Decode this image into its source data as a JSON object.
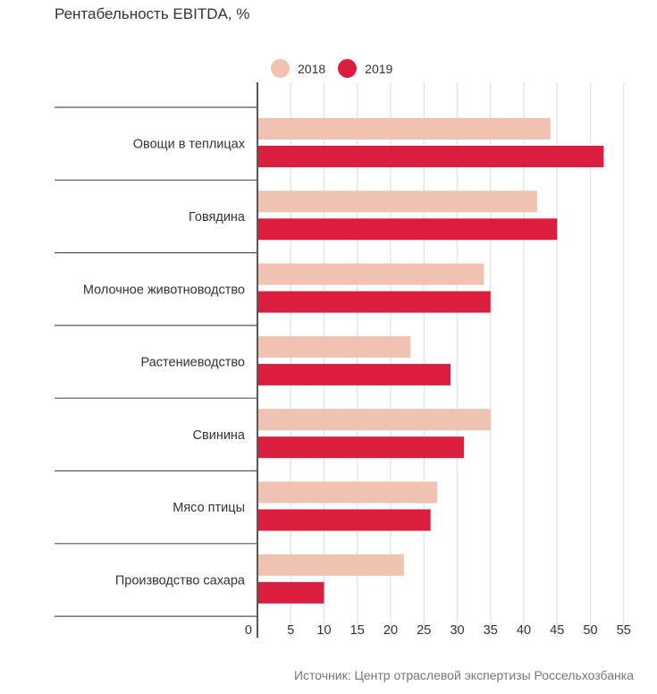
{
  "title": "Рентабельность EBITDA, %",
  "source": "Источник: Центр отраслевой экспертизы Россельхозбанка",
  "legend": [
    {
      "label": "2018",
      "color": "#F0C2B2"
    },
    {
      "label": "2019",
      "color": "#DC1E3E"
    }
  ],
  "chart_data": {
    "type": "bar",
    "orientation": "horizontal",
    "title": "Рентабельность EBITDA, %",
    "categories": [
      "Овощи в теплицах",
      "Говядина",
      "Молочное животноводство",
      "Растениеводство",
      "Свинина",
      "Мясо птицы",
      "Производство сахара"
    ],
    "series": [
      {
        "name": "2018",
        "color": "#F0C2B2",
        "values": [
          44,
          42,
          34,
          23,
          35,
          27,
          22
        ]
      },
      {
        "name": "2019",
        "color": "#DC1E3E",
        "values": [
          52,
          45,
          35,
          29,
          31,
          26,
          10
        ]
      }
    ],
    "xlim": [
      0,
      55
    ],
    "ticks": [
      "0",
      "5",
      "10",
      "15",
      "20",
      "25",
      "30",
      "35",
      "40",
      "45",
      "50",
      "55"
    ],
    "tick_values": [
      0,
      5,
      10,
      15,
      20,
      25,
      30,
      35,
      40,
      45,
      50,
      55
    ],
    "grid": true,
    "legend_position": "top"
  }
}
